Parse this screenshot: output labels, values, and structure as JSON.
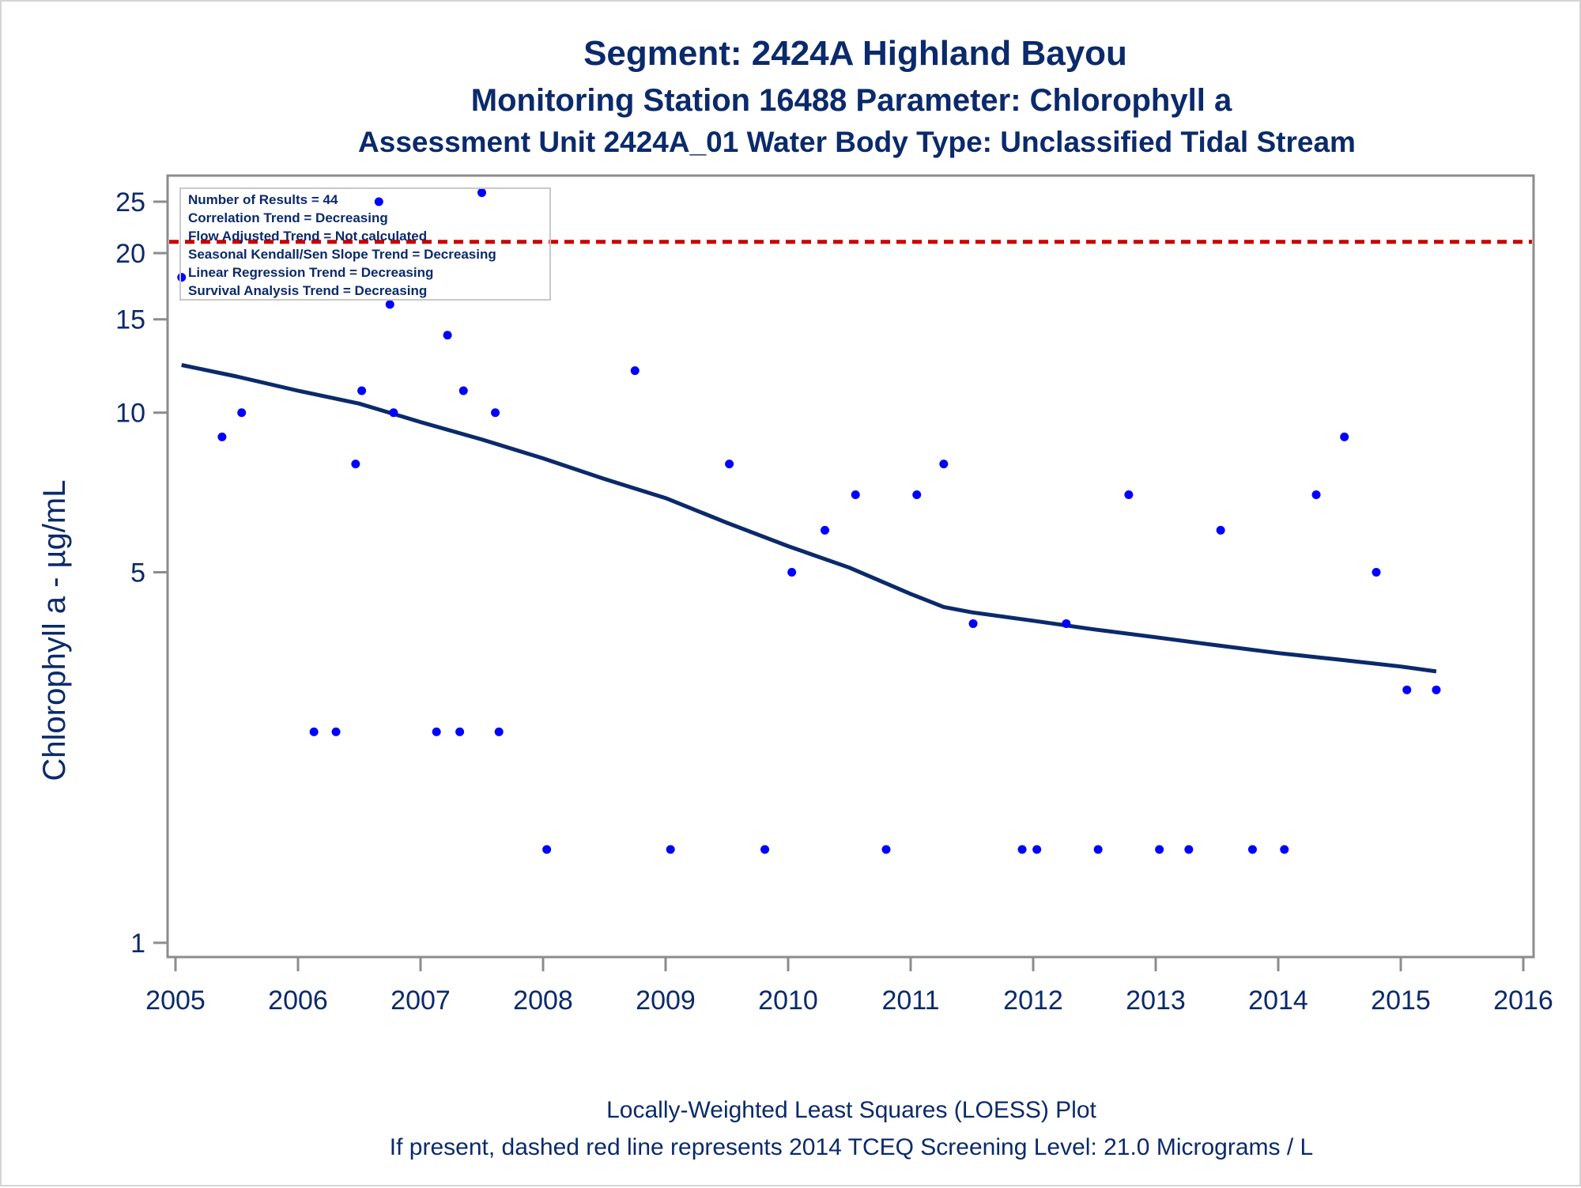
{
  "colors": {
    "text": "#0b2a6b",
    "points": "#0000ff",
    "loess_line": "#0b2a6b",
    "screening_line": "#cc0000",
    "axis": "#8c8c8c"
  },
  "chart_data": {
    "type": "scatter",
    "title": "Segment: 2424A  Highland Bayou",
    "subtitle": "Monitoring Station 16488 Parameter: Chlorophyll a",
    "subtitle2": "Assessment Unit 2424A_01   Water Body Type: Unclassified Tidal Stream",
    "ylabel": "Chlorophyll a -  µg/mL",
    "xlabel": "",
    "y_scale": "log",
    "xlim": [
      2005,
      2016.1
    ],
    "ylim": [
      0.94,
      28
    ],
    "x_ticks": [
      "2005",
      "2006",
      "2007",
      "2008",
      "2009",
      "2010",
      "2011",
      "2012",
      "2013",
      "2014",
      "2015",
      "2016"
    ],
    "y_ticks": [
      1,
      5,
      10,
      15,
      20,
      25
    ],
    "grid": false,
    "stats_box": [
      "Number of Results = 44",
      "Correlation Trend = Decreasing",
      "Flow Adjusted Trend = Not calculated",
      "Seasonal Kendall/Sen Slope Trend = Decreasing",
      "Linear Regression Trend = Decreasing",
      "Survival Analysis Trend = Decreasing"
    ],
    "screening_level": {
      "value": 21.0,
      "style": "dashed",
      "color": "#cc0000"
    },
    "series": [
      {
        "kind": "points",
        "x": [
          2005.05,
          2005.38,
          2005.54,
          2006.13,
          2006.31,
          2006.47,
          2006.52,
          2006.66,
          2006.75,
          2006.78,
          2007.13,
          2007.22,
          2007.32,
          2007.35,
          2007.5,
          2007.61,
          2007.64,
          2008.03,
          2008.75,
          2009.04,
          2009.52,
          2009.81,
          2010.03,
          2010.3,
          2010.55,
          2010.8,
          2011.05,
          2011.27,
          2011.51,
          2011.91,
          2012.03,
          2012.27,
          2012.53,
          2012.78,
          2013.03,
          2013.27,
          2013.53,
          2013.79,
          2014.05,
          2014.31,
          2014.54,
          2014.8,
          2015.05,
          2015.29
        ],
        "y": [
          18,
          9,
          10,
          2.5,
          2.5,
          8,
          11,
          25,
          16,
          10,
          2.5,
          14,
          2.5,
          11,
          26,
          10,
          2.5,
          1.5,
          12,
          1.5,
          8,
          1.5,
          5,
          6,
          7,
          1.5,
          7,
          8,
          4,
          1.5,
          1.5,
          4,
          1.5,
          7,
          1.5,
          1.5,
          6,
          1.5,
          1.5,
          7,
          9,
          5,
          3,
          3
        ]
      },
      {
        "kind": "loess",
        "x": [
          2005.05,
          2005.5,
          2006.0,
          2006.5,
          2007.0,
          2007.5,
          2008.0,
          2008.5,
          2009.0,
          2009.5,
          2010.0,
          2010.5,
          2011.0,
          2011.27,
          2011.5,
          2012.0,
          2012.5,
          2013.0,
          2013.5,
          2014.0,
          2014.5,
          2015.0,
          2015.29
        ],
        "y": [
          12.3,
          11.7,
          11.0,
          10.4,
          9.6,
          8.9,
          8.2,
          7.5,
          6.9,
          6.2,
          5.6,
          5.1,
          4.55,
          4.3,
          4.2,
          4.05,
          3.9,
          3.77,
          3.64,
          3.52,
          3.42,
          3.32,
          3.25
        ]
      }
    ],
    "footnotes": [
      "Locally-Weighted Least Squares (LOESS) Plot",
      "If present, dashed red line represents 2014 TCEQ Screening Level: 21.0 Micrograms / L"
    ]
  }
}
